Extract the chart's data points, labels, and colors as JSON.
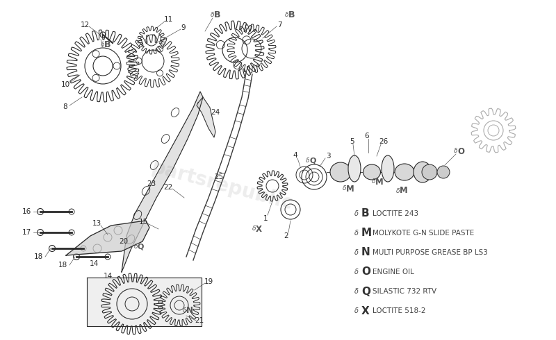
{
  "bg_color": "#ffffff",
  "line_color": "#2a2a2a",
  "label_color": "#2a2a2a",
  "annot_color": "#555555",
  "fig_width": 8.0,
  "fig_height": 4.9,
  "dpi": 100,
  "legend_items": [
    {
      "symbol": "B",
      "text": "LOCTITE 243"
    },
    {
      "symbol": "M",
      "text": "MOLYKOTE G-N SLIDE PASTE"
    },
    {
      "symbol": "N",
      "text": "MULTI PURPOSE GREASE BP LS3"
    },
    {
      "symbol": "O",
      "text": "ENGINE OIL"
    },
    {
      "symbol": "Q",
      "text": "SILASTIC 732 RTV"
    },
    {
      "symbol": "X",
      "text": "LOCTITE 518-2"
    }
  ]
}
